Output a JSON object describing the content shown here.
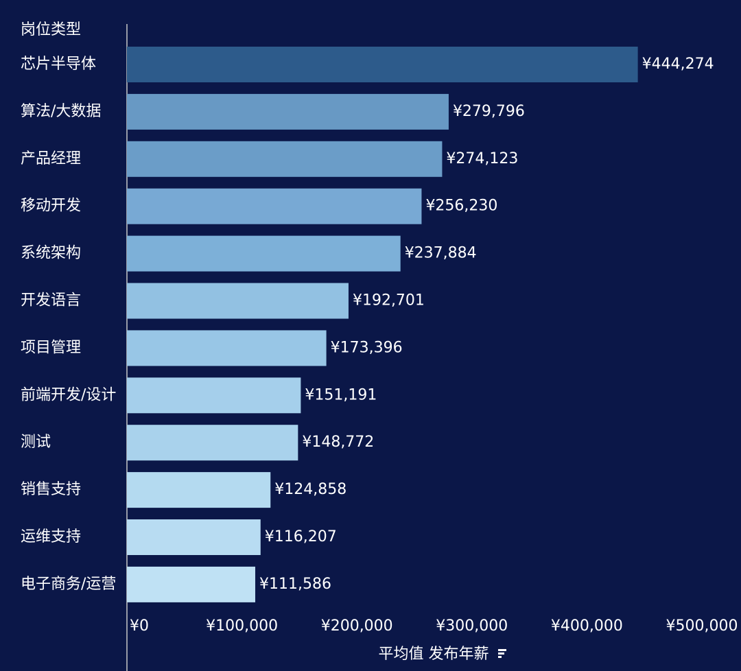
{
  "chart_data": {
    "type": "bar",
    "orientation": "horizontal",
    "y_axis_title": "岗位类型",
    "x_axis_title": "平均值 发布年薪",
    "categories": [
      "芯片半导体",
      "算法/大数据",
      "产品经理",
      "移动开发",
      "系统架构",
      "开发语言",
      "项目管理",
      "前端开发/设计",
      "测试",
      "销售支持",
      "运维支持",
      "电子商务/运营"
    ],
    "values": [
      444274,
      279796,
      274123,
      256230,
      237884,
      192701,
      173396,
      151191,
      148772,
      124858,
      116207,
      111586
    ],
    "value_labels": [
      "¥444,274",
      "¥279,796",
      "¥274,123",
      "¥256,230",
      "¥237,884",
      "¥192,701",
      "¥173,396",
      "¥151,191",
      "¥148,772",
      "¥124,858",
      "¥116,207",
      "¥111,586"
    ],
    "colors": [
      "#2d5b8b",
      "#6899c4",
      "#6b9dc8",
      "#78a9d4",
      "#7db0d8",
      "#92c1e2",
      "#98c6e6",
      "#a5cfeb",
      "#a9d2ec",
      "#b4daf0",
      "#b8dcf2",
      "#bfe1f4"
    ],
    "xlim": [
      0,
      500000
    ],
    "xticks": [
      {
        "value": 0,
        "label": "¥0"
      },
      {
        "value": 100000,
        "label": "¥100,000"
      },
      {
        "value": 200000,
        "label": "¥200,000"
      },
      {
        "value": 300000,
        "label": "¥300,000"
      },
      {
        "value": 400000,
        "label": "¥400,000"
      },
      {
        "value": 500000,
        "label": "¥500,000"
      }
    ]
  }
}
